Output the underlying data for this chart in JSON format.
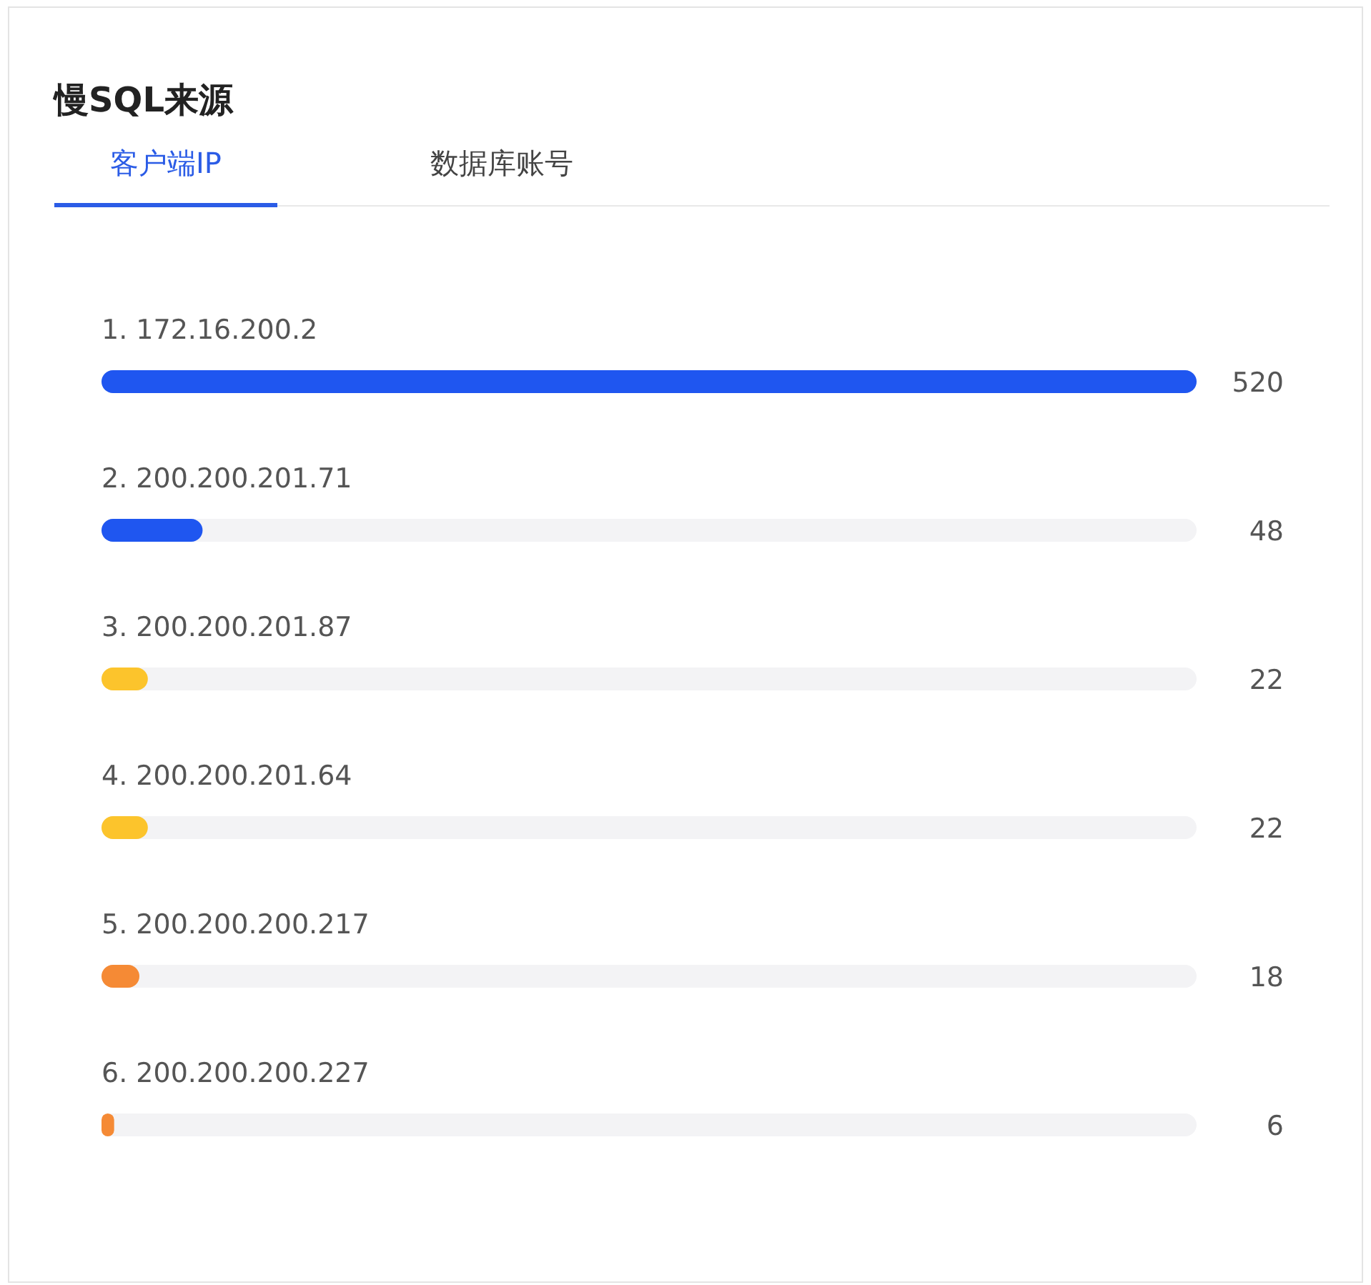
{
  "chart_data": {
    "type": "bar",
    "orientation": "horizontal",
    "title": "慢SQL来源",
    "annotations": [
      "客户端IP",
      "数据库账号"
    ],
    "categories": [
      "1. 172.16.200.2",
      "2. 200.200.201.71",
      "3. 200.200.201.87",
      "4. 200.200.201.64",
      "5. 200.200.200.217",
      "6. 200.200.200.227"
    ],
    "values": [
      520,
      48,
      22,
      22,
      18,
      6
    ],
    "colors": [
      "#1f56f0",
      "#1f56f0",
      "#fcc42c",
      "#fcc42c",
      "#f58a35",
      "#f58a35"
    ],
    "data_labels": true
  }
}
